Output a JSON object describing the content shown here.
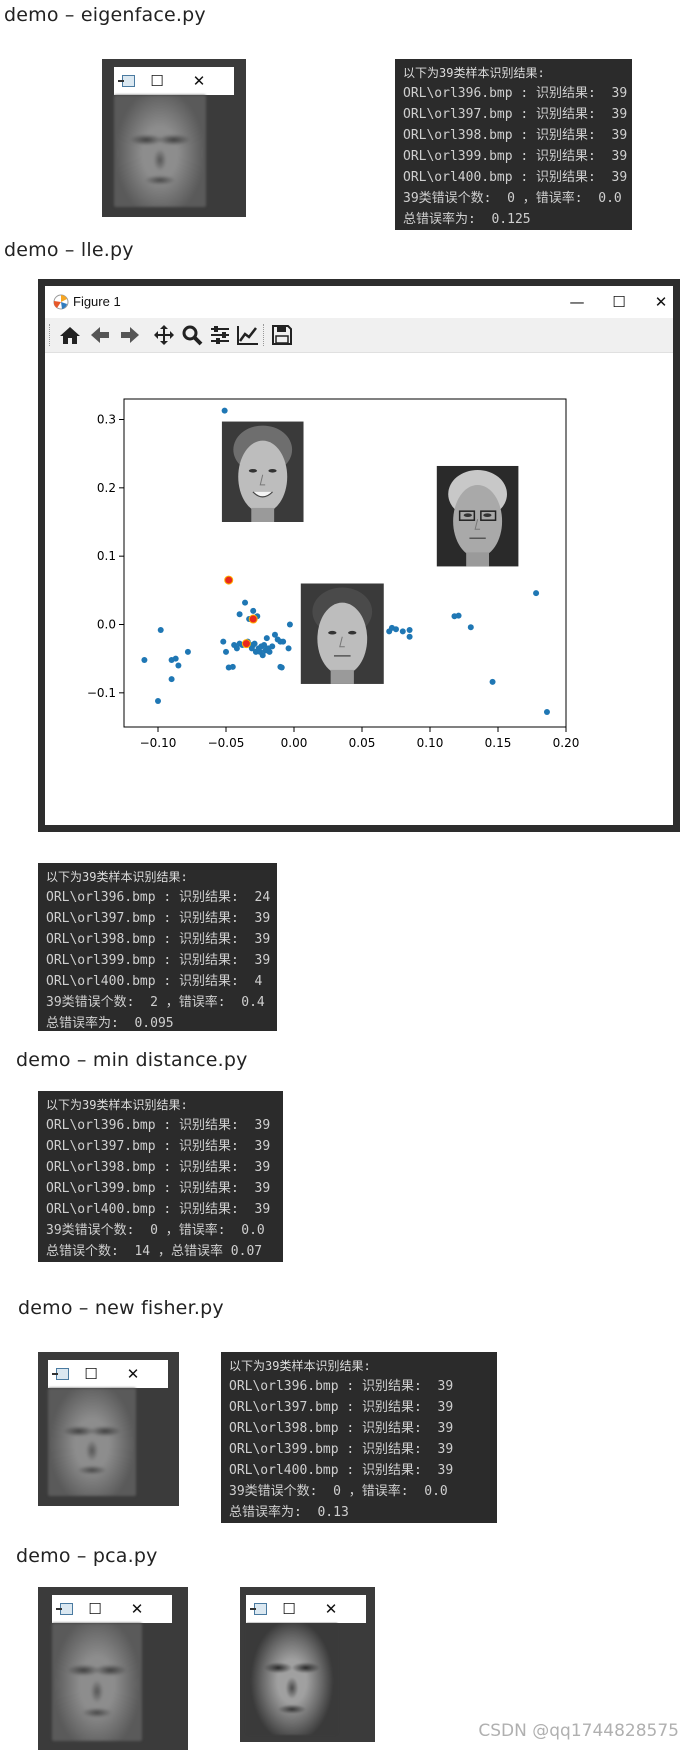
{
  "sections": {
    "eigenface": "demo – eigenface.py",
    "lle": "demo – lle.py",
    "min_distance": "demo – min distance.py",
    "new_fisher": "demo – new fisher.py",
    "pca": "demo – pca.py"
  },
  "window_controls": {
    "minimize": "—",
    "maximize": "☐",
    "close": "✕"
  },
  "consoles": {
    "eigenface": [
      "以下为39类样本识别结果:",
      "ORL\\orl396.bmp : 识别结果:  39",
      "ORL\\orl397.bmp : 识别结果:  39",
      "ORL\\orl398.bmp : 识别结果:  39",
      "ORL\\orl399.bmp : 识别结果:  39",
      "ORL\\orl400.bmp : 识别结果:  39",
      "39类错误个数:  0 ，错误率:  0.0",
      "总错误率为:  0.125"
    ],
    "lle": [
      "以下为39类样本识别结果:",
      "ORL\\orl396.bmp : 识别结果:  24",
      "ORL\\orl397.bmp : 识别结果:  39",
      "ORL\\orl398.bmp : 识别结果:  39",
      "ORL\\orl399.bmp : 识别结果:  39",
      "ORL\\orl400.bmp : 识别结果:  4",
      "39类错误个数:  2 ，错误率:  0.4",
      "总错误率为:  0.095"
    ],
    "min_distance": [
      "以下为39类样本识别结果:",
      "ORL\\orl396.bmp : 识别结果:  39",
      "ORL\\orl397.bmp : 识别结果:  39",
      "ORL\\orl398.bmp : 识别结果:  39",
      "ORL\\orl399.bmp : 识别结果:  39",
      "ORL\\orl400.bmp : 识别结果:  39",
      "39类错误个数:  0 ，错误率:  0.0",
      "总错误个数:  14 ，总错误率 0.07"
    ],
    "new_fisher": [
      "以下为39类样本识别结果:",
      "ORL\\orl396.bmp : 识别结果:  39",
      "ORL\\orl397.bmp : 识别结果:  39",
      "ORL\\orl398.bmp : 识别结果:  39",
      "ORL\\orl399.bmp : 识别结果:  39",
      "ORL\\orl400.bmp : 识别结果:  39",
      "39类错误个数:  0 ，错误率:  0.0",
      "总错误率为:  0.13"
    ]
  },
  "figure": {
    "title": "Figure 1",
    "toolbar": [
      "home-icon",
      "back-arrow-icon",
      "forward-arrow-icon",
      "pan-icon",
      "zoom-icon",
      "configure-subplots-icon",
      "edit-axis-icon",
      "save-icon"
    ]
  },
  "chart_data": {
    "type": "scatter",
    "xlim": [
      -0.125,
      0.2
    ],
    "ylim": [
      -0.15,
      0.33
    ],
    "xticks": [
      "−0.10",
      "−0.05",
      "0.00",
      "0.05",
      "0.10",
      "0.15",
      "0.20"
    ],
    "xtick_values": [
      -0.1,
      -0.05,
      0.0,
      0.05,
      0.1,
      0.15,
      0.2
    ],
    "yticks": [
      "0.3",
      "0.2",
      "0.1",
      "0.0",
      "−0.1"
    ],
    "ytick_values": [
      0.3,
      0.2,
      0.1,
      0.0,
      -0.1
    ],
    "series": [
      {
        "color": "#1f77b4",
        "points": [
          [
            -0.051,
            0.313
          ],
          [
            -0.11,
            -0.052
          ],
          [
            -0.1,
            -0.112
          ],
          [
            -0.098,
            -0.008
          ],
          [
            -0.09,
            -0.08
          ],
          [
            -0.09,
            -0.052
          ],
          [
            -0.087,
            -0.05
          ],
          [
            -0.085,
            -0.06
          ],
          [
            -0.078,
            -0.04
          ],
          [
            -0.052,
            -0.025
          ],
          [
            -0.05,
            -0.04
          ],
          [
            -0.048,
            -0.063
          ],
          [
            -0.045,
            -0.062
          ],
          [
            -0.044,
            -0.03
          ],
          [
            -0.042,
            -0.035
          ],
          [
            -0.04,
            0.015
          ],
          [
            -0.04,
            -0.028
          ],
          [
            -0.038,
            -0.03
          ],
          [
            -0.036,
            0.032
          ],
          [
            -0.035,
            -0.03
          ],
          [
            -0.034,
            -0.025
          ],
          [
            -0.033,
            0.008
          ],
          [
            -0.032,
            -0.03
          ],
          [
            -0.031,
            -0.035
          ],
          [
            -0.03,
            0.02
          ],
          [
            -0.03,
            -0.03
          ],
          [
            -0.029,
            -0.028
          ],
          [
            -0.028,
            -0.04
          ],
          [
            -0.027,
            0.012
          ],
          [
            -0.026,
            -0.035
          ],
          [
            -0.025,
            -0.04
          ],
          [
            -0.024,
            -0.032
          ],
          [
            -0.023,
            -0.045
          ],
          [
            -0.022,
            -0.03
          ],
          [
            -0.021,
            -0.038
          ],
          [
            -0.02,
            -0.02
          ],
          [
            -0.019,
            -0.035
          ],
          [
            -0.018,
            -0.04
          ],
          [
            -0.016,
            -0.032
          ],
          [
            -0.014,
            -0.015
          ],
          [
            -0.012,
            -0.022
          ],
          [
            -0.01,
            -0.025
          ],
          [
            -0.008,
            -0.025
          ],
          [
            -0.01,
            -0.062
          ],
          [
            -0.009,
            -0.063
          ],
          [
            -0.004,
            -0.035
          ],
          [
            -0.003,
            0.0
          ],
          [
            0.07,
            -0.01
          ],
          [
            0.072,
            -0.005
          ],
          [
            0.075,
            -0.007
          ],
          [
            0.08,
            -0.01
          ],
          [
            0.085,
            -0.018
          ],
          [
            0.085,
            -0.008
          ],
          [
            0.118,
            0.012
          ],
          [
            0.121,
            0.013
          ],
          [
            0.13,
            -0.004
          ],
          [
            0.146,
            -0.084
          ],
          [
            0.178,
            0.046
          ],
          [
            0.186,
            -0.128
          ]
        ]
      },
      {
        "color": "#e8281e",
        "points": [
          [
            -0.048,
            0.065
          ],
          [
            -0.03,
            0.008
          ],
          [
            -0.035,
            -0.028
          ]
        ]
      }
    ],
    "inset_images": [
      {
        "name": "face-smiling",
        "x0": -0.053,
        "x1": 0.007,
        "y0": 0.15,
        "y1": 0.297
      },
      {
        "name": "face-glasses",
        "x0": 0.105,
        "x1": 0.165,
        "y0": 0.085,
        "y1": 0.232
      },
      {
        "name": "face-serious",
        "x0": 0.005,
        "x1": 0.066,
        "y0": -0.087,
        "y1": 0.06
      }
    ]
  },
  "watermark": "CSDN @qq1744828575"
}
